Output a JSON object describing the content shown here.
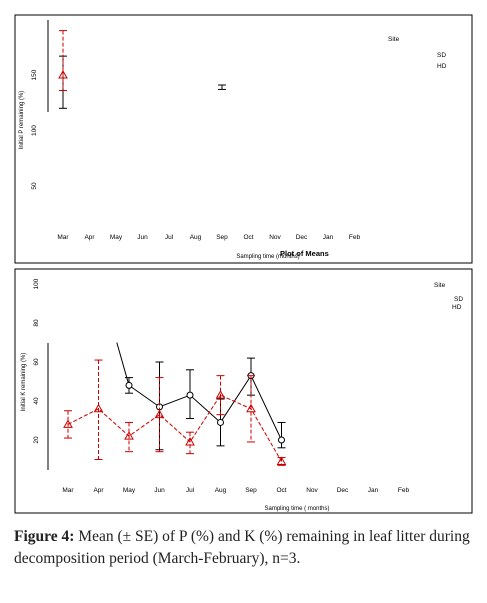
{
  "chart_data": [
    {
      "type": "line",
      "title": "",
      "ylabel": "Initial P remaining (%)",
      "xlabel": "Sampling time (months)",
      "ylim": [
        30,
        200
      ],
      "yticks": [
        50,
        100,
        150
      ],
      "categories": [
        "Mar",
        "Apr",
        "May",
        "Jun",
        "Jul",
        "Aug",
        "Sep",
        "Oct",
        "Nov",
        "Dec",
        "Jan",
        "Feb"
      ],
      "legend_title": "Site",
      "legend": [
        "SD",
        "HD"
      ],
      "legend_position": "top-right",
      "series": [
        {
          "name": "SD",
          "color": "#000000",
          "marker": "circle",
          "dash": "solid",
          "values": [
            null,
            null,
            null,
            null,
            null,
            null,
            null,
            null,
            null,
            null,
            null,
            null
          ],
          "errbars": [
            {
              "x": "Mar",
              "lo": 120,
              "hi": 167
            },
            {
              "x": "Sep",
              "lo": 137,
              "hi": 141
            }
          ]
        },
        {
          "name": "HD",
          "color": "#cc0000",
          "marker": "triangle",
          "dash": "dashed",
          "values": [
            150,
            null,
            null,
            null,
            null,
            null,
            null,
            null,
            null,
            null,
            null,
            null
          ],
          "err": [
            [
              136,
              190
            ],
            null,
            null,
            null,
            null,
            null,
            null,
            null,
            null,
            null,
            null,
            null
          ]
        }
      ],
      "overlay_text": "Plot of Means"
    },
    {
      "type": "line",
      "title": "",
      "ylabel": "Initial K remaining (%)",
      "xlabel": "Sampling time ( months)",
      "ylim": [
        12,
        102
      ],
      "yticks": [
        20,
        40,
        60,
        80,
        100
      ],
      "categories": [
        "Mar",
        "Apr",
        "May",
        "Jun",
        "Jul",
        "Aug",
        "Sep",
        "Oct",
        "Nov",
        "Dec",
        "Jan",
        "Feb"
      ],
      "legend_title": "Site",
      "legend": [
        "SD",
        "HD"
      ],
      "legend_position": "top-right",
      "series": [
        {
          "name": "SD",
          "color": "#000000",
          "marker": "circle",
          "dash": "solid",
          "values": [
            null,
            null,
            48,
            37,
            43,
            29,
            53,
            20,
            null,
            null,
            null,
            null
          ],
          "err": [
            null,
            null,
            [
              44,
              52
            ],
            [
              15,
              60
            ],
            [
              31,
              56
            ],
            [
              17,
              41
            ],
            [
              43,
              62
            ],
            [
              16,
              29
            ],
            null,
            null,
            null,
            null
          ]
        },
        {
          "name": "HD",
          "color": "#cc0000",
          "marker": "triangle",
          "dash": "dashed",
          "values": [
            28,
            36,
            22,
            33,
            19,
            43,
            36,
            9,
            null,
            null,
            null,
            null
          ],
          "err": [
            [
              21,
              35
            ],
            [
              10,
              61
            ],
            [
              14,
              29
            ],
            [
              14,
              52
            ],
            [
              13,
              24
            ],
            [
              33,
              53
            ],
            [
              19,
              53
            ],
            [
              7,
              11
            ],
            null,
            null,
            null,
            null
          ]
        }
      ],
      "sd_leading_segment": {
        "from": [
          -0.3,
          70
        ],
        "to": [
          1.6,
          70
        ],
        "to2": [
          2,
          48
        ]
      }
    }
  ],
  "caption": {
    "label": "Figure 4:",
    "text": " Mean (± SE) of P (%) and K (%) remaining in leaf litter during decomposition period (March-February), n=3."
  }
}
